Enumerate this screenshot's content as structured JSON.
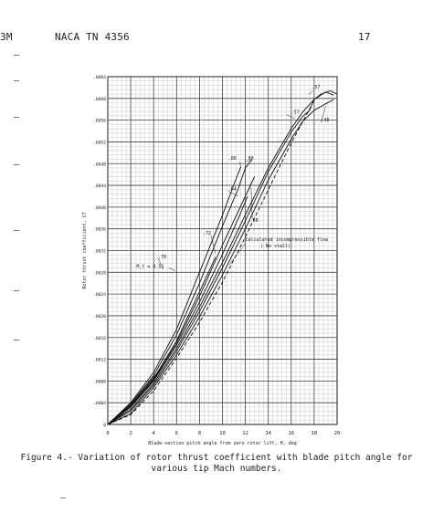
{
  "header": {
    "left_fragment": "3M",
    "report_id": "NACA TN 4356",
    "page_number": "17"
  },
  "caption": {
    "line1": "Figure 4.- Variation of rotor thrust coefficient with blade pitch angle for",
    "line2": "various tip Mach numbers."
  },
  "chart_data": {
    "type": "line",
    "title": "",
    "xlabel": "Blade-section pitch angle from zero rotor lift, θ, deg",
    "ylabel": "Rotor thrust coefficient, CT",
    "xlim": [
      0,
      20
    ],
    "ylim": [
      0,
      0.0064
    ],
    "x_ticks": [
      0,
      2,
      4,
      6,
      8,
      10,
      12,
      14,
      16,
      18,
      20
    ],
    "x_tick_labels": [
      "0",
      "2",
      "4",
      "6",
      "8",
      "10",
      "12",
      "14",
      "16",
      "18",
      "20"
    ],
    "y_ticks": [
      0,
      0.0004,
      0.0008,
      0.0012,
      0.0016,
      0.002,
      0.0024,
      0.0028,
      0.0032,
      0.0036,
      0.004,
      0.0044,
      0.0048,
      0.0052,
      0.0056,
      0.006,
      0.0064
    ],
    "y_tick_labels": [
      "0",
      ".0004",
      ".0008",
      ".0012",
      ".0016",
      ".0020",
      ".0024",
      ".0028",
      ".0032",
      ".0036",
      ".0040",
      ".0044",
      ".0048",
      ".0052",
      ".0056",
      ".0060",
      ".0064"
    ],
    "grid": true,
    "series": [
      {
        "name": ".45",
        "points": [
          [
            0,
            0
          ],
          [
            2,
            0.0002
          ],
          [
            4,
            0.00068
          ],
          [
            6,
            0.00128
          ],
          [
            8,
            0.00198
          ],
          [
            10,
            0.00275
          ],
          [
            12,
            0.0036
          ],
          [
            14,
            0.0045
          ],
          [
            16,
            0.00525
          ],
          [
            17,
            0.00558
          ],
          [
            18,
            0.00578
          ],
          [
            19,
            0.0059
          ],
          [
            19.7,
            0.00598
          ]
        ]
      },
      {
        "name": ".51",
        "points": [
          [
            0,
            0
          ],
          [
            2,
            0.00025
          ],
          [
            4,
            0.00072
          ],
          [
            6,
            0.00135
          ],
          [
            8,
            0.00208
          ],
          [
            10,
            0.00288
          ],
          [
            12,
            0.00375
          ],
          [
            14,
            0.00465
          ],
          [
            16,
            0.00538
          ],
          [
            17,
            0.00567
          ],
          [
            17.6,
            0.00578
          ],
          [
            18,
            0.00598
          ],
          [
            19,
            0.00612
          ],
          [
            19.7,
            0.00606
          ]
        ]
      },
      {
        "name": ".57",
        "points": [
          [
            0,
            0
          ],
          [
            2,
            0.00028
          ],
          [
            4,
            0.00076
          ],
          [
            6,
            0.0014
          ],
          [
            8,
            0.00216
          ],
          [
            10,
            0.00298
          ],
          [
            12,
            0.00386
          ],
          [
            14,
            0.00472
          ],
          [
            16,
            0.00545
          ],
          [
            17,
            0.00575
          ],
          [
            18,
            0.00598
          ],
          [
            18.6,
            0.00608
          ],
          [
            19.4,
            0.00614
          ],
          [
            20,
            0.00608
          ]
        ]
      },
      {
        "name": ".64",
        "points": [
          [
            0,
            0
          ],
          [
            2,
            0.00032
          ],
          [
            4,
            0.0008
          ],
          [
            6,
            0.00146
          ],
          [
            8,
            0.00225
          ],
          [
            10,
            0.00313
          ],
          [
            11.4,
            0.0038
          ],
          [
            12.2,
            0.0042
          ]
        ]
      },
      {
        "name": ".68",
        "points": [
          [
            0,
            0
          ],
          [
            2,
            0.00033
          ],
          [
            4,
            0.00082
          ],
          [
            6,
            0.0015
          ],
          [
            8,
            0.00236
          ],
          [
            10,
            0.0033
          ],
          [
            12,
            0.0042
          ],
          [
            12.8,
            0.00456
          ]
        ]
      },
      {
        "name": ".72",
        "points": [
          [
            0,
            0
          ],
          [
            2,
            0.00034
          ],
          [
            4,
            0.00084
          ],
          [
            6,
            0.00154
          ],
          [
            8,
            0.00244
          ],
          [
            9.4,
            0.00308
          ]
        ]
      },
      {
        "name": ".76",
        "points": [
          [
            0,
            0
          ],
          [
            2,
            0.00036
          ],
          [
            4,
            0.00087
          ],
          [
            4.8,
            0.00106
          ]
        ]
      },
      {
        "name": ".80",
        "points": [
          [
            0,
            0
          ],
          [
            2,
            0.00038
          ],
          [
            4,
            0.0009
          ],
          [
            6,
            0.00165
          ],
          [
            8,
            0.0026
          ],
          [
            10,
            0.00365
          ],
          [
            11.4,
            0.00435
          ],
          [
            12,
            0.00472
          ],
          [
            12.6,
            0.00488
          ]
        ]
      },
      {
        "name": ".86",
        "points": [
          [
            0,
            0
          ],
          [
            2,
            0.0004
          ],
          [
            4,
            0.00096
          ],
          [
            6,
            0.00175
          ],
          [
            8,
            0.0028
          ],
          [
            10,
            0.00385
          ],
          [
            11,
            0.00442
          ],
          [
            11.6,
            0.00474
          ]
        ]
      },
      {
        "name": "Calculated incompressible flow (No stall)",
        "dashed": true,
        "points": [
          [
            0,
            0
          ],
          [
            2,
            0.00018
          ],
          [
            4,
            0.00062
          ],
          [
            6,
            0.00122
          ],
          [
            8,
            0.00188
          ],
          [
            10,
            0.00262
          ],
          [
            12,
            0.00345
          ],
          [
            14,
            0.00432
          ],
          [
            16,
            0.00518
          ],
          [
            18,
            0.00596
          ]
        ]
      }
    ],
    "annotations": [
      {
        "text": ".57",
        "x": 17.8,
        "y": 0.00618
      },
      {
        "text": ".57",
        "x": 16.0,
        "y": 0.00572
      },
      {
        "text": ".45",
        "x": 18.6,
        "y": 0.00558
      },
      {
        "text": ".86",
        "x": 10.5,
        "y": 0.00487
      },
      {
        "text": ".80",
        "x": 12.0,
        "y": 0.00487
      },
      {
        "text": ".64",
        "x": 10.5,
        "y": 0.00431
      },
      {
        "text": ".68",
        "x": 12.4,
        "y": 0.00373
      },
      {
        "text": ".72",
        "x": 8.3,
        "y": 0.00349
      },
      {
        "text": "Calculated incompressible flow",
        "x": 12.0,
        "y": 0.00338
      },
      {
        "text": "( No stall)",
        "x": 13.3,
        "y": 0.00326
      },
      {
        "text": ".76",
        "x": 4.4,
        "y": 0.00306
      },
      {
        "text": "M_t = 0.51",
        "x": 2.5,
        "y": 0.00288
      }
    ]
  }
}
